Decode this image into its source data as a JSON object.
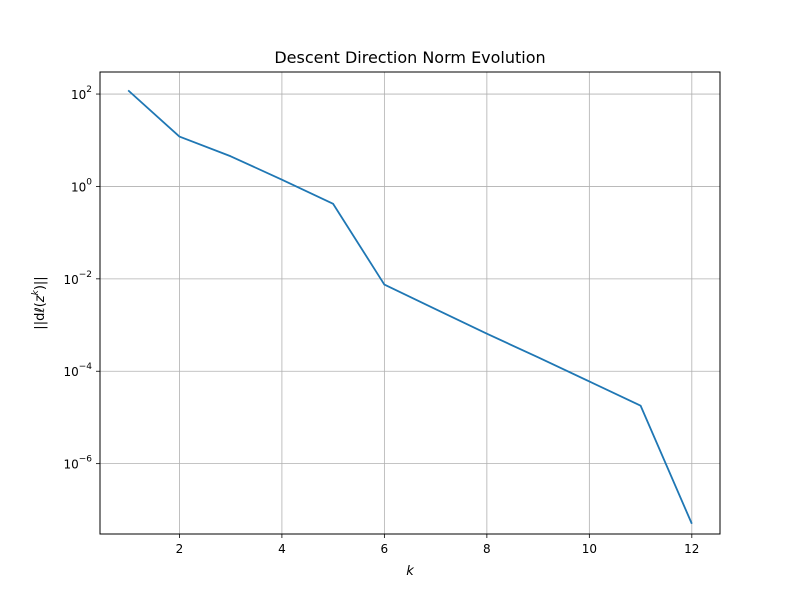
{
  "chart_data": {
    "type": "line",
    "title": "Descent Direction Norm Evolution",
    "xlabel": "k",
    "ylabel": "||dℓ(z^k)||",
    "x_ticks": [
      2,
      4,
      6,
      8,
      10,
      12
    ],
    "y_ticks": [
      {
        "value": 100.0,
        "label": "10^2"
      },
      {
        "value": 1.0,
        "label": "10^0"
      },
      {
        "value": 0.01,
        "label": "10^-2"
      },
      {
        "value": 0.0001,
        "label": "10^-4"
      },
      {
        "value": 1e-06,
        "label": "10^-6"
      }
    ],
    "y_scale": "log",
    "xlim": [
      0.45,
      12.55
    ],
    "ylim": [
      3e-08,
      300.0
    ],
    "grid": true,
    "color": "#1f77b4",
    "series": [
      {
        "x": [
          1,
          2,
          3,
          4,
          5,
          6,
          7,
          8,
          9,
          10,
          11,
          12
        ],
        "values": [
          120,
          12,
          4.5,
          1.4,
          0.42,
          0.0075,
          0.0022,
          0.00065,
          0.0002,
          6e-05,
          1.8e-05,
          5e-08
        ]
      }
    ]
  }
}
